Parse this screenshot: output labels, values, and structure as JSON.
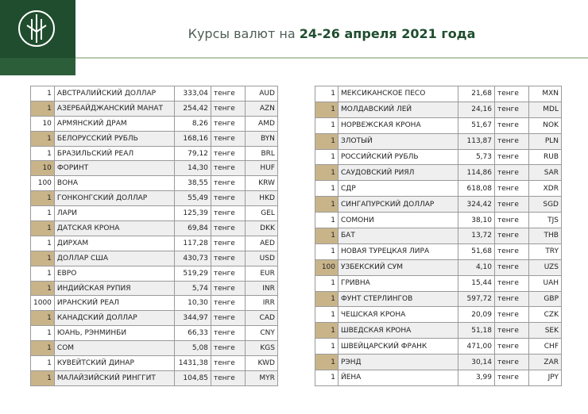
{
  "header": {
    "title_prefix": "Курсы валют на ",
    "title_date": "24-26 апреля 2021 года"
  },
  "tables": [
    {
      "rows": [
        [
          "1",
          "АВСТРАЛИЙСКИЙ ДОЛЛАР",
          "333,04",
          "тенге",
          "AUD"
        ],
        [
          "1",
          "АЗЕРБАЙДЖАНСКИЙ МАНАТ",
          "254,42",
          "тенге",
          "AZN"
        ],
        [
          "10",
          "АРМЯНСКИЙ ДРАМ",
          "8,26",
          "тенге",
          "AMD"
        ],
        [
          "1",
          "БЕЛОРУССКИЙ РУБЛЬ",
          "168,16",
          "тенге",
          "BYN"
        ],
        [
          "1",
          "БРАЗИЛЬСКИЙ РЕАЛ",
          "79,12",
          "тенге",
          "BRL"
        ],
        [
          "10",
          "ФОРИНТ",
          "14,30",
          "тенге",
          "HUF"
        ],
        [
          "100",
          "ВОНА",
          "38,55",
          "тенге",
          "KRW"
        ],
        [
          "1",
          "ГОНКОНГСКИЙ ДОЛЛАР",
          "55,49",
          "тенге",
          "HKD"
        ],
        [
          "1",
          "ЛАРИ",
          "125,39",
          "тенге",
          "GEL"
        ],
        [
          "1",
          "ДАТСКАЯ КРОНА",
          "69,84",
          "тенге",
          "DKK"
        ],
        [
          "1",
          "ДИРХАМ",
          "117,28",
          "тенге",
          "AED"
        ],
        [
          "1",
          "ДОЛЛАР США",
          "430,73",
          "тенге",
          "USD"
        ],
        [
          "1",
          "ЕВРО",
          "519,29",
          "тенге",
          "EUR"
        ],
        [
          "1",
          "ИНДИЙСКАЯ РУПИЯ",
          "5,74",
          "тенге",
          "INR"
        ],
        [
          "1000",
          "ИРАНСКИЙ РЕАЛ",
          "10,30",
          "тенге",
          "IRR"
        ],
        [
          "1",
          "КАНАДСКИЙ ДОЛЛАР",
          "344,97",
          "тенге",
          "CAD"
        ],
        [
          "1",
          "ЮАНЬ, РЭНМИНБИ",
          "66,33",
          "тенге",
          "CNY"
        ],
        [
          "1",
          "СОМ",
          "5,08",
          "тенге",
          "KGS"
        ],
        [
          "1",
          "КУВЕЙТСКИЙ ДИНАР",
          "1431,38",
          "тенге",
          "KWD"
        ],
        [
          "1",
          "МАЛАЙЗИЙСКИЙ РИНГГИТ",
          "104,85",
          "тенге",
          "MYR"
        ]
      ]
    },
    {
      "rows": [
        [
          "1",
          "МЕКСИКАНСКОЕ ПЕСО",
          "21,68",
          "тенге",
          "MXN"
        ],
        [
          "1",
          "МОЛДАВСКИЙ ЛЕЙ",
          "24,16",
          "тенге",
          "MDL"
        ],
        [
          "1",
          "НОРВЕЖСКАЯ КРОНА",
          "51,67",
          "тенге",
          "NOK"
        ],
        [
          "1",
          "ЗЛОТЫЙ",
          "113,87",
          "тенге",
          "PLN"
        ],
        [
          "1",
          "РОССИЙСКИЙ РУБЛЬ",
          "5,73",
          "тенге",
          "RUB"
        ],
        [
          "1",
          "САУДОВСКИЙ РИЯЛ",
          "114,86",
          "тенге",
          "SAR"
        ],
        [
          "1",
          "СДР",
          "618,08",
          "тенге",
          "XDR"
        ],
        [
          "1",
          "СИНГАПУРСКИЙ ДОЛЛАР",
          "324,42",
          "тенге",
          "SGD"
        ],
        [
          "1",
          "СОМОНИ",
          "38,10",
          "тенге",
          "TJS"
        ],
        [
          "1",
          "БАТ",
          "13,72",
          "тенге",
          "THB"
        ],
        [
          "1",
          "НОВАЯ ТУРЕЦКАЯ ЛИРА",
          "51,68",
          "тенге",
          "TRY"
        ],
        [
          "100",
          "УЗБЕКСКИЙ СУМ",
          "4,10",
          "тенге",
          "UZS"
        ],
        [
          "1",
          "ГРИВНА",
          "15,44",
          "тенге",
          "UAH"
        ],
        [
          "1",
          "ФУНТ СТЕРЛИНГОВ",
          "597,72",
          "тенге",
          "GBP"
        ],
        [
          "1",
          "ЧЕШСКАЯ КРОНА",
          "20,09",
          "тенге",
          "CZK"
        ],
        [
          "1",
          "ШВЕДСКАЯ КРОНА",
          "51,18",
          "тенге",
          "SEK"
        ],
        [
          "1",
          "ШВЕЙЦАРСКИЙ ФРАНК",
          "471,00",
          "тенге",
          "CHF"
        ],
        [
          "1",
          "РЭНД",
          "30,14",
          "тенге",
          "ZAR"
        ],
        [
          "1",
          "ЙЕНА",
          "3,99",
          "тенге",
          "JPY"
        ]
      ]
    }
  ]
}
